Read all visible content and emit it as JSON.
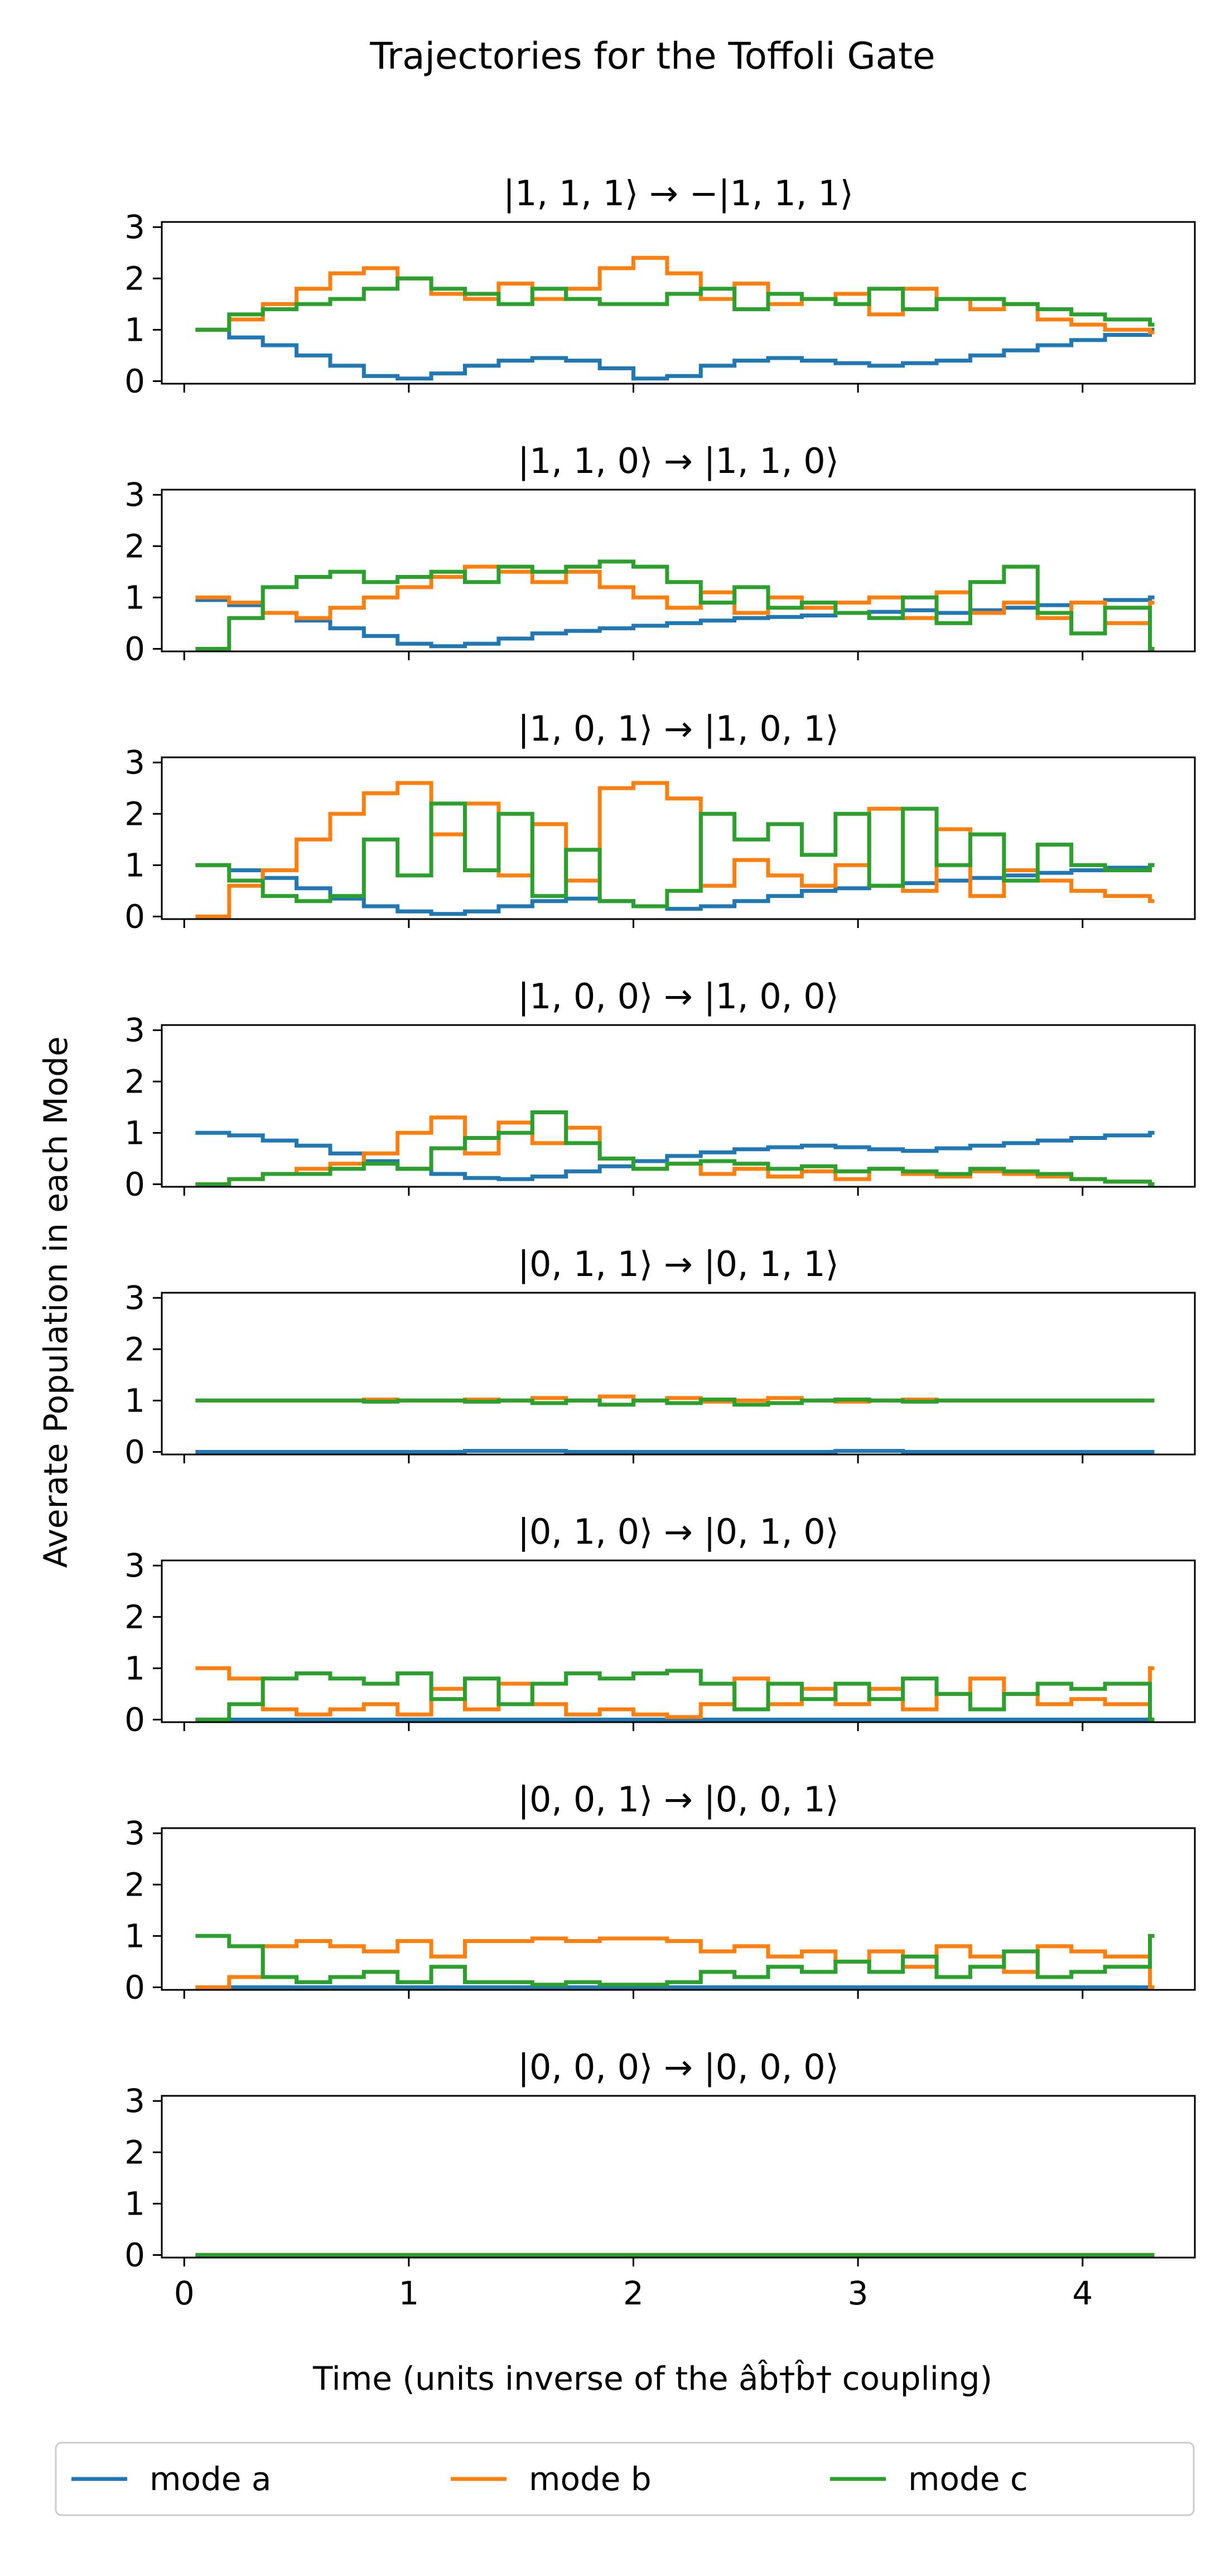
{
  "chart_data": {
    "type": "line",
    "style": "step",
    "title": "Trajectories for the Toffoli Gate",
    "xlabel": "Time (units inverse of the âb̂†b̂† coupling)",
    "ylabel": "Averate Population in each Mode",
    "xlim": [
      -0.1,
      4.5
    ],
    "ylim": [
      -0.05,
      3.1
    ],
    "xticks": [
      "0",
      "1",
      "2",
      "3",
      "4"
    ],
    "yticks": [
      "0",
      "1",
      "2",
      "3"
    ],
    "legend": {
      "placement": "bottom-center",
      "entries": [
        "mode a",
        "mode b",
        "mode c"
      ]
    },
    "series_colors": {
      "mode a": "#1f77b4",
      "mode b": "#ff7f0e",
      "mode c": "#2ca02c"
    },
    "x": [
      0.05,
      0.2,
      0.35,
      0.5,
      0.65,
      0.8,
      0.95,
      1.1,
      1.25,
      1.4,
      1.55,
      1.7,
      1.85,
      2.0,
      2.15,
      2.3,
      2.45,
      2.6,
      2.75,
      2.9,
      3.05,
      3.2,
      3.35,
      3.5,
      3.65,
      3.8,
      3.95,
      4.1,
      4.3
    ],
    "panels": [
      {
        "title": "|1, 1, 1⟩ → −|1, 1, 1⟩",
        "series": [
          {
            "name": "mode a",
            "values": [
              1.0,
              0.85,
              0.7,
              0.5,
              0.3,
              0.1,
              0.05,
              0.15,
              0.3,
              0.4,
              0.45,
              0.4,
              0.25,
              0.05,
              0.1,
              0.3,
              0.4,
              0.45,
              0.4,
              0.35,
              0.3,
              0.35,
              0.4,
              0.5,
              0.6,
              0.7,
              0.8,
              0.9,
              1.0
            ]
          },
          {
            "name": "mode b",
            "values": [
              1.0,
              1.2,
              1.5,
              1.8,
              2.1,
              2.2,
              2.0,
              1.7,
              1.6,
              1.9,
              1.6,
              1.8,
              2.2,
              2.4,
              2.1,
              1.6,
              1.9,
              1.5,
              1.6,
              1.7,
              1.3,
              1.8,
              1.6,
              1.4,
              1.5,
              1.2,
              1.1,
              1.0,
              0.95
            ]
          },
          {
            "name": "mode c",
            "values": [
              1.0,
              1.3,
              1.4,
              1.5,
              1.6,
              1.8,
              2.0,
              1.8,
              1.7,
              1.5,
              1.8,
              1.6,
              1.5,
              1.5,
              1.7,
              1.8,
              1.4,
              1.7,
              1.6,
              1.5,
              1.8,
              1.4,
              1.6,
              1.6,
              1.5,
              1.4,
              1.3,
              1.2,
              1.1
            ]
          }
        ]
      },
      {
        "title": "|1, 1, 0⟩ → |1, 1, 0⟩",
        "series": [
          {
            "name": "mode a",
            "values": [
              0.95,
              0.85,
              0.7,
              0.55,
              0.4,
              0.25,
              0.1,
              0.05,
              0.1,
              0.2,
              0.3,
              0.35,
              0.4,
              0.45,
              0.5,
              0.55,
              0.6,
              0.62,
              0.65,
              0.7,
              0.72,
              0.75,
              0.7,
              0.75,
              0.8,
              0.85,
              0.9,
              0.95,
              1.0
            ]
          },
          {
            "name": "mode b",
            "values": [
              1.0,
              0.9,
              0.7,
              0.6,
              0.8,
              1.0,
              1.2,
              1.4,
              1.6,
              1.5,
              1.3,
              1.5,
              1.2,
              1.0,
              0.8,
              1.1,
              0.7,
              1.0,
              0.8,
              0.9,
              1.0,
              0.6,
              1.1,
              0.7,
              0.9,
              0.6,
              0.9,
              0.5,
              0.9
            ]
          },
          {
            "name": "mode c",
            "values": [
              0.0,
              0.6,
              1.2,
              1.4,
              1.5,
              1.3,
              1.4,
              1.5,
              1.3,
              1.6,
              1.5,
              1.6,
              1.7,
              1.6,
              1.3,
              0.9,
              1.2,
              0.8,
              0.9,
              0.7,
              0.6,
              1.0,
              0.5,
              1.3,
              1.6,
              0.7,
              0.3,
              0.8,
              0.0
            ]
          }
        ]
      },
      {
        "title": "|1, 0, 1⟩ → |1, 0, 1⟩",
        "series": [
          {
            "name": "mode a",
            "values": [
              1.0,
              0.9,
              0.75,
              0.55,
              0.35,
              0.2,
              0.1,
              0.05,
              0.1,
              0.2,
              0.3,
              0.35,
              0.3,
              0.2,
              0.15,
              0.2,
              0.3,
              0.4,
              0.5,
              0.55,
              0.6,
              0.65,
              0.7,
              0.75,
              0.8,
              0.85,
              0.9,
              0.95,
              1.0
            ]
          },
          {
            "name": "mode b",
            "values": [
              0.0,
              0.6,
              0.9,
              1.5,
              2.0,
              2.4,
              2.6,
              1.6,
              2.2,
              0.8,
              1.8,
              0.7,
              2.5,
              2.6,
              2.3,
              0.6,
              1.1,
              0.8,
              0.6,
              1.0,
              2.1,
              0.5,
              1.7,
              0.4,
              0.9,
              0.7,
              0.5,
              0.4,
              0.3
            ]
          },
          {
            "name": "mode c",
            "values": [
              1.0,
              0.7,
              0.4,
              0.3,
              0.4,
              1.5,
              0.8,
              2.2,
              0.9,
              2.0,
              0.4,
              1.3,
              0.3,
              0.2,
              0.5,
              2.0,
              1.5,
              1.8,
              1.2,
              2.0,
              0.6,
              2.1,
              1.0,
              1.6,
              0.7,
              1.4,
              1.0,
              0.9,
              1.0
            ]
          }
        ]
      },
      {
        "title": "|1, 0, 0⟩ → |1, 0, 0⟩",
        "series": [
          {
            "name": "mode a",
            "values": [
              1.0,
              0.95,
              0.85,
              0.75,
              0.6,
              0.45,
              0.3,
              0.2,
              0.12,
              0.1,
              0.15,
              0.25,
              0.35,
              0.45,
              0.55,
              0.62,
              0.68,
              0.72,
              0.75,
              0.72,
              0.68,
              0.65,
              0.7,
              0.75,
              0.8,
              0.85,
              0.9,
              0.95,
              1.0
            ]
          },
          {
            "name": "mode b",
            "values": [
              0.0,
              0.1,
              0.2,
              0.3,
              0.4,
              0.6,
              1.0,
              1.3,
              0.6,
              1.2,
              0.8,
              1.1,
              0.5,
              0.3,
              0.4,
              0.2,
              0.3,
              0.15,
              0.25,
              0.1,
              0.3,
              0.2,
              0.15,
              0.25,
              0.2,
              0.15,
              0.1,
              0.05,
              0.0
            ]
          },
          {
            "name": "mode c",
            "values": [
              0.0,
              0.1,
              0.2,
              0.2,
              0.3,
              0.4,
              0.3,
              0.7,
              0.9,
              1.0,
              1.4,
              0.8,
              0.5,
              0.3,
              0.4,
              0.45,
              0.4,
              0.3,
              0.35,
              0.25,
              0.3,
              0.25,
              0.2,
              0.3,
              0.25,
              0.2,
              0.1,
              0.05,
              0.0
            ]
          }
        ]
      },
      {
        "title": "|0, 1, 1⟩ → |0, 1, 1⟩",
        "series": [
          {
            "name": "mode a",
            "values": [
              0.0,
              0.0,
              0.0,
              0.0,
              0.0,
              0.0,
              0.0,
              0.0,
              0.02,
              0.02,
              0.02,
              0.0,
              0.0,
              0.0,
              0.0,
              0.0,
              0.0,
              0.0,
              0.0,
              0.02,
              0.02,
              0.0,
              0.0,
              0.0,
              0.0,
              0.0,
              0.0,
              0.0,
              0.0
            ]
          },
          {
            "name": "mode b",
            "values": [
              1.0,
              1.0,
              1.0,
              1.0,
              1.0,
              1.02,
              1.0,
              1.0,
              1.02,
              1.0,
              1.05,
              1.0,
              1.08,
              1.0,
              1.05,
              0.98,
              1.0,
              1.05,
              1.0,
              0.98,
              1.0,
              1.02,
              1.0,
              1.0,
              1.0,
              1.0,
              1.0,
              1.0,
              1.0
            ]
          },
          {
            "name": "mode c",
            "values": [
              1.0,
              1.0,
              1.0,
              1.0,
              1.0,
              0.98,
              1.0,
              1.0,
              0.98,
              1.0,
              0.95,
              1.0,
              0.92,
              1.0,
              0.95,
              1.02,
              0.92,
              0.95,
              1.0,
              1.02,
              1.0,
              0.98,
              1.0,
              1.0,
              1.0,
              1.0,
              1.0,
              1.0,
              1.0
            ]
          }
        ]
      },
      {
        "title": "|0, 1, 0⟩ → |0, 1, 0⟩",
        "series": [
          {
            "name": "mode a",
            "values": [
              0.0,
              0.0,
              0.0,
              0.0,
              0.0,
              0.0,
              0.0,
              0.0,
              0.0,
              0.0,
              0.0,
              0.0,
              0.0,
              0.0,
              0.0,
              0.0,
              0.0,
              0.0,
              0.0,
              0.0,
              0.0,
              0.0,
              0.0,
              0.0,
              0.0,
              0.0,
              0.0,
              0.0,
              0.0
            ]
          },
          {
            "name": "mode b",
            "values": [
              1.0,
              0.8,
              0.2,
              0.1,
              0.2,
              0.3,
              0.1,
              0.6,
              0.2,
              0.7,
              0.3,
              0.1,
              0.2,
              0.1,
              0.05,
              0.3,
              0.8,
              0.3,
              0.6,
              0.3,
              0.6,
              0.2,
              0.5,
              0.8,
              0.5,
              0.3,
              0.4,
              0.3,
              1.0
            ]
          },
          {
            "name": "mode c",
            "values": [
              0.0,
              0.3,
              0.8,
              0.9,
              0.8,
              0.7,
              0.9,
              0.4,
              0.8,
              0.3,
              0.7,
              0.9,
              0.8,
              0.9,
              0.95,
              0.7,
              0.2,
              0.7,
              0.4,
              0.7,
              0.4,
              0.8,
              0.5,
              0.2,
              0.5,
              0.7,
              0.6,
              0.7,
              0.0
            ]
          }
        ]
      },
      {
        "title": "|0, 0, 1⟩ → |0, 0, 1⟩",
        "series": [
          {
            "name": "mode a",
            "values": [
              0.0,
              0.0,
              0.0,
              0.0,
              0.0,
              0.0,
              0.0,
              0.0,
              0.0,
              0.0,
              0.0,
              0.0,
              0.0,
              0.0,
              0.0,
              0.0,
              0.0,
              0.0,
              0.0,
              0.0,
              0.0,
              0.0,
              0.0,
              0.0,
              0.0,
              0.0,
              0.0,
              0.0,
              0.0
            ]
          },
          {
            "name": "mode b",
            "values": [
              0.0,
              0.2,
              0.8,
              0.9,
              0.8,
              0.7,
              0.9,
              0.6,
              0.9,
              0.9,
              0.95,
              0.9,
              0.95,
              0.95,
              0.9,
              0.7,
              0.8,
              0.6,
              0.7,
              0.5,
              0.7,
              0.4,
              0.8,
              0.6,
              0.3,
              0.8,
              0.7,
              0.6,
              0.0
            ]
          },
          {
            "name": "mode c",
            "values": [
              1.0,
              0.8,
              0.2,
              0.1,
              0.2,
              0.3,
              0.1,
              0.4,
              0.1,
              0.1,
              0.05,
              0.1,
              0.05,
              0.05,
              0.1,
              0.3,
              0.2,
              0.4,
              0.3,
              0.5,
              0.3,
              0.6,
              0.2,
              0.4,
              0.7,
              0.2,
              0.3,
              0.4,
              1.0
            ]
          }
        ]
      },
      {
        "title": "|0, 0, 0⟩ → |0, 0, 0⟩",
        "series": [
          {
            "name": "mode a",
            "values": [
              0.0,
              0.0,
              0.0,
              0.0,
              0.0,
              0.0,
              0.0,
              0.0,
              0.0,
              0.0,
              0.0,
              0.0,
              0.0,
              0.0,
              0.0,
              0.0,
              0.0,
              0.0,
              0.0,
              0.0,
              0.0,
              0.0,
              0.0,
              0.0,
              0.0,
              0.0,
              0.0,
              0.0,
              0.0
            ]
          },
          {
            "name": "mode b",
            "values": [
              0.0,
              0.0,
              0.0,
              0.0,
              0.0,
              0.0,
              0.0,
              0.0,
              0.0,
              0.0,
              0.0,
              0.0,
              0.0,
              0.0,
              0.0,
              0.0,
              0.0,
              0.0,
              0.0,
              0.0,
              0.0,
              0.0,
              0.0,
              0.0,
              0.0,
              0.0,
              0.0,
              0.0,
              0.0
            ]
          },
          {
            "name": "mode c",
            "values": [
              0.0,
              0.0,
              0.0,
              0.0,
              0.0,
              0.0,
              0.0,
              0.0,
              0.0,
              0.0,
              0.0,
              0.0,
              0.0,
              0.0,
              0.0,
              0.0,
              0.0,
              0.0,
              0.0,
              0.0,
              0.0,
              0.0,
              0.0,
              0.0,
              0.0,
              0.0,
              0.0,
              0.0,
              0.0
            ]
          }
        ]
      }
    ]
  }
}
